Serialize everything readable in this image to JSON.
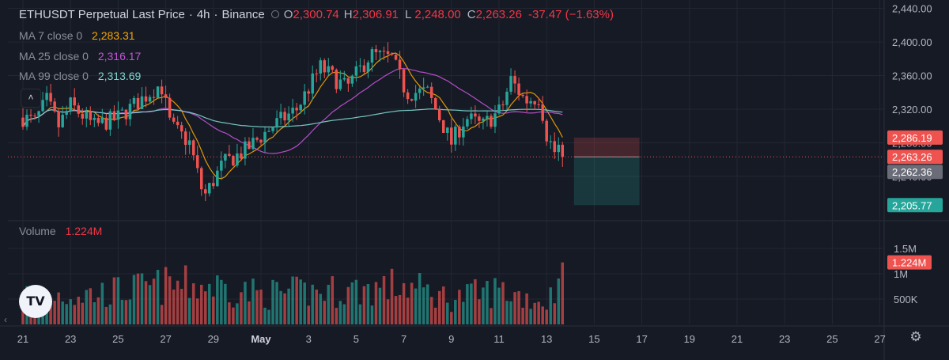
{
  "header": {
    "symbol": "ETHUSDT Perpetual Last Price",
    "interval": "4h",
    "exchange": "Binance",
    "separator": "·",
    "open_label": "O",
    "open": "2,300.74",
    "high_label": "H",
    "high": "2,306.91",
    "low_label": "L",
    "low": "2,248.00",
    "close_label": "C",
    "close": "2,263.26",
    "change": "-37.47 (−1.63%)"
  },
  "indicators": [
    {
      "label": "MA 7 close 0",
      "value": "2,283.31",
      "color": "#f7a600"
    },
    {
      "label": "MA 25 close 0",
      "value": "2,316.17",
      "color": "#c454d8"
    },
    {
      "label": "MA 99 close 0",
      "value": "2,313.69",
      "color": "#7fd8d0"
    }
  ],
  "volume": {
    "label": "Volume",
    "value": "1.224M"
  },
  "colors": {
    "up": "#26a69a",
    "down": "#ef5350",
    "grid": "#232733",
    "bg": "#161a25",
    "text": "#b2b5be"
  },
  "icons": {
    "collapse": "chevron-up-icon",
    "logo": "tradingview-logo-icon",
    "scroll": "chevron-left-icon",
    "settings": "gear-icon"
  },
  "collapse_glyph": "˄",
  "logo_text": "TV",
  "scroll_glyph": "‹",
  "settings_glyph": "⚙",
  "chart_data": {
    "type": "candlestick",
    "price_axis": {
      "ticks": [
        "2,440.00",
        "2,400.00",
        "2,360.00",
        "2,320.00",
        "2,280.00",
        "2,240.00"
      ],
      "tick_values": [
        2440,
        2400,
        2360,
        2320,
        2280,
        2240
      ],
      "range": [
        2190,
        2450
      ]
    },
    "price_labels": [
      {
        "value": 2286.19,
        "text": "2,286.19",
        "color": "#ef5350"
      },
      {
        "value": 2263.26,
        "text": "2,263.26",
        "color": "#ef5350"
      },
      {
        "value": 2262.36,
        "text": "2,262.36",
        "color": "#6a6d78"
      },
      {
        "value": 2205.77,
        "text": "2,205.77",
        "color": "#26a69a"
      }
    ],
    "volume_axis": {
      "ticks": [
        "1.5M",
        "1M",
        "500K"
      ],
      "tick_values": [
        1500000,
        1000000,
        500000
      ],
      "max": 2000000,
      "last_label": {
        "value": 1224000,
        "text": "1.224M",
        "color": "#ef5350"
      }
    },
    "time_axis": {
      "labels": [
        "21",
        "23",
        "25",
        "27",
        "29",
        "May",
        "3",
        "5",
        "7",
        "9",
        "11",
        "13",
        "15",
        "17",
        "19",
        "21",
        "23",
        "25",
        "27"
      ],
      "start_day": 21,
      "labels_day_offset": [
        0,
        2,
        4,
        6,
        8,
        10,
        12,
        14,
        16,
        18,
        20,
        22,
        24,
        26,
        28,
        30,
        32,
        34,
        36
      ]
    },
    "bars_per_day": 6,
    "position": {
      "entry": 2263.26,
      "stop": 2286.19,
      "target": 2205.77,
      "start_day_offset": 23.15,
      "end_day_offset": 25.9
    },
    "last_price": 2263.26,
    "ma": [
      {
        "name": "MA 7",
        "period": 7,
        "color": "#f7a600"
      },
      {
        "name": "MA 25",
        "period": 25,
        "color": "#c454d8"
      },
      {
        "name": "MA 99",
        "period": 99,
        "color": "#7fd8d0"
      }
    ],
    "anchor_days": [
      0,
      0.5,
      1,
      1.5,
      2,
      3,
      4,
      5.8,
      6.2,
      7,
      7.6,
      8.4,
      9.3,
      10.5,
      11.5,
      12.5,
      13.6,
      14.6,
      15.5,
      16.1,
      17,
      18,
      18.6,
      19.3,
      20.1,
      20.5,
      21.1,
      21.7,
      22,
      22.4,
      22.75
    ],
    "anchor_prices": [
      2310,
      2305,
      2330,
      2300,
      2325,
      2300,
      2310,
      2350,
      2300,
      2280,
      2215,
      2255,
      2270,
      2300,
      2320,
      2370,
      2345,
      2385,
      2380,
      2340,
      2340,
      2280,
      2310,
      2300,
      2320,
      2355,
      2330,
      2335,
      2290,
      2265,
      2300
    ],
    "volume_anchor_days": [
      0,
      3,
      6,
      8,
      10,
      14,
      16,
      18,
      20,
      22,
      22.75
    ],
    "volume_anchor_values": [
      700000,
      700000,
      900000,
      900000,
      700000,
      800000,
      900000,
      600000,
      800000,
      500000,
      1224000
    ]
  }
}
